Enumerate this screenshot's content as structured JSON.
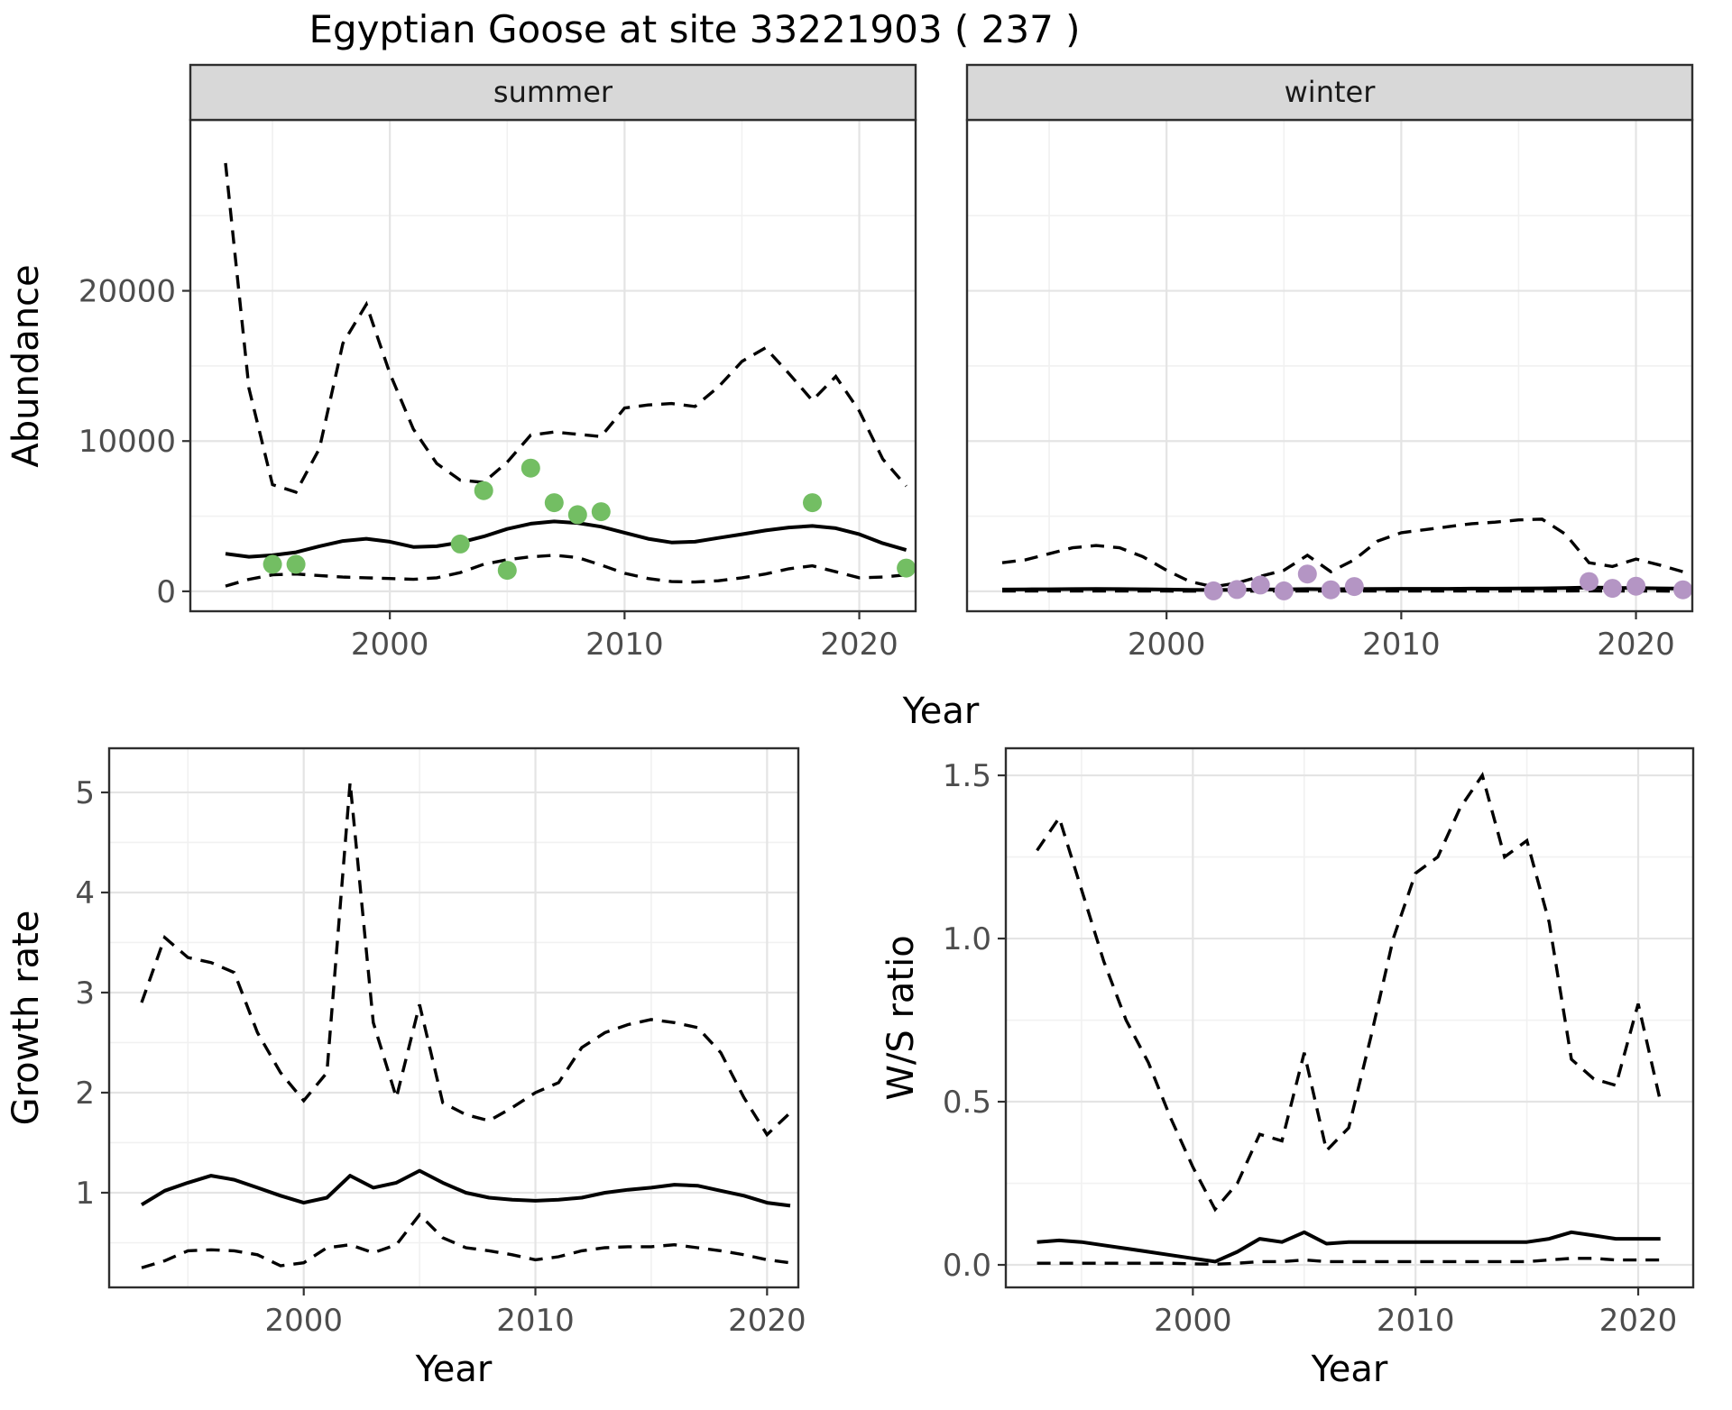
{
  "title": "Egyptian Goose at site 33221903 ( 237 )",
  "chart_data": {
    "type": "line",
    "title": "Egyptian Goose at site 33221903 ( 237 )",
    "facets": [
      "summer",
      "winter"
    ],
    "legend": "none",
    "grid": "on",
    "line_styles": {
      "mean": "solid",
      "confidence_interval": "dashed"
    },
    "colors": {
      "summer_points": "#73BE63",
      "winter_points": "#B495C4",
      "lines": "#000000",
      "strip_background": "#d8d8d8",
      "panel_border": "#2e2e2e",
      "grid_major": "#e4e4e4",
      "grid_minor": "#f1f1f1"
    },
    "panels": {
      "abundance_summer": {
        "strip": "summer",
        "xlabel": "Year",
        "ylabel": "Abundance",
        "xlim": [
          1991.5,
          2022.4
        ],
        "ylim": [
          -1326,
          31374
        ],
        "xticks": {
          "values": [
            2000,
            2010,
            2020
          ],
          "labels": [
            "2000",
            "2010",
            "2020"
          ]
        },
        "yticks": {
          "values": [
            0,
            10000,
            20000
          ],
          "labels": [
            "0",
            "10000",
            "20000"
          ]
        },
        "xminor": [
          1995,
          2005,
          2015
        ],
        "yminor": [
          5000,
          15000,
          25000
        ],
        "years": [
          1993,
          1994,
          1995,
          1996,
          1997,
          1998,
          1999,
          2000,
          2001,
          2002,
          2003,
          2004,
          2005,
          2006,
          2007,
          2008,
          2009,
          2010,
          2011,
          2012,
          2013,
          2014,
          2015,
          2016,
          2017,
          2018,
          2019,
          2020,
          2021,
          2022
        ],
        "ci_upper": [
          28500,
          13500,
          7100,
          6600,
          9500,
          16500,
          19100,
          14500,
          10800,
          8500,
          7400,
          7250,
          8600,
          10400,
          10600,
          10450,
          10300,
          12200,
          12400,
          12500,
          12300,
          13600,
          15300,
          16200,
          14500,
          12700,
          14300,
          12000,
          8800,
          7000
        ],
        "mean": [
          2500,
          2300,
          2400,
          2600,
          3000,
          3350,
          3500,
          3300,
          2950,
          3000,
          3250,
          3650,
          4150,
          4500,
          4650,
          4550,
          4300,
          3900,
          3500,
          3250,
          3300,
          3550,
          3800,
          4050,
          4250,
          4350,
          4200,
          3800,
          3200,
          2750
        ],
        "ci_lower": [
          350,
          800,
          1100,
          1150,
          1050,
          950,
          900,
          850,
          800,
          900,
          1250,
          1800,
          2100,
          2300,
          2400,
          2250,
          1750,
          1200,
          850,
          650,
          620,
          700,
          900,
          1150,
          1500,
          1700,
          1300,
          900,
          950,
          1100
        ],
        "points": {
          "color": "#73BE63",
          "years": [
            1995,
            1996,
            2003,
            2004,
            2005,
            2006,
            2007,
            2008,
            2009,
            2018,
            2022
          ],
          "values": [
            1800,
            1800,
            3150,
            6700,
            1400,
            8200,
            5900,
            5100,
            5300,
            5900,
            1550
          ]
        }
      },
      "abundance_winter": {
        "strip": "winter",
        "xlabel": "Year",
        "ylabel": "Abundance",
        "xlim": [
          1991.5,
          2022.4
        ],
        "ylim": [
          -1326,
          31374
        ],
        "xticks": {
          "values": [
            2000,
            2010,
            2020
          ],
          "labels": [
            "2000",
            "2010",
            "2020"
          ]
        },
        "yticks": {
          "values": [
            0,
            10000,
            20000
          ],
          "labels": [
            "0",
            "10000",
            "20000"
          ]
        },
        "xminor": [
          1995,
          2005,
          2015
        ],
        "yminor": [
          5000,
          15000,
          25000
        ],
        "years": [
          1993,
          1994,
          1995,
          1996,
          1997,
          1998,
          1999,
          2000,
          2001,
          2002,
          2003,
          2004,
          2005,
          2006,
          2007,
          2008,
          2009,
          2010,
          2011,
          2012,
          2013,
          2014,
          2015,
          2016,
          2017,
          2018,
          2019,
          2020,
          2021,
          2022
        ],
        "ci_upper": [
          1900,
          2100,
          2500,
          2900,
          3050,
          2900,
          2300,
          1400,
          650,
          300,
          550,
          1000,
          1400,
          2400,
          1300,
          2100,
          3350,
          3900,
          4100,
          4300,
          4500,
          4600,
          4750,
          4800,
          3800,
          1900,
          1650,
          2150,
          1750,
          1300
        ],
        "mean": [
          120,
          130,
          140,
          150,
          160,
          150,
          140,
          120,
          100,
          90,
          100,
          120,
          130,
          150,
          140,
          150,
          160,
          170,
          170,
          170,
          180,
          180,
          190,
          200,
          220,
          260,
          230,
          220,
          200,
          180
        ],
        "ci_lower": [
          20,
          20,
          20,
          20,
          20,
          20,
          20,
          15,
          10,
          5,
          10,
          15,
          15,
          20,
          15,
          20,
          20,
          20,
          20,
          20,
          20,
          20,
          20,
          20,
          20,
          30,
          20,
          20,
          15,
          10
        ],
        "points": {
          "color": "#B495C4",
          "years": [
            2002,
            2003,
            2004,
            2005,
            2006,
            2007,
            2008,
            2018,
            2019,
            2020,
            2022
          ],
          "values": [
            30,
            120,
            420,
            30,
            1150,
            100,
            320,
            650,
            200,
            340,
            100
          ]
        }
      },
      "growth_rate": {
        "strip": "",
        "xlabel": "Year",
        "ylabel": "Growth rate",
        "xlim": [
          1991.6,
          2021.35
        ],
        "ylim": [
          0.054,
          5.441
        ],
        "xticks": {
          "values": [
            2000,
            2010,
            2020
          ],
          "labels": [
            "2000",
            "2010",
            "2020"
          ]
        },
        "yticks": {
          "values": [
            1,
            2,
            3,
            4,
            5
          ],
          "labels": [
            "1",
            "2",
            "3",
            "4",
            "5"
          ]
        },
        "xminor": [
          1995,
          2005,
          2015
        ],
        "yminor": [
          0.5,
          1.5,
          2.5,
          3.5,
          4.5
        ],
        "years": [
          1993,
          1994,
          1995,
          1996,
          1997,
          1998,
          1999,
          2000,
          2001,
          2002,
          2003,
          2004,
          2005,
          2006,
          2007,
          2008,
          2009,
          2010,
          2011,
          2012,
          2013,
          2014,
          2015,
          2016,
          2017,
          2018,
          2019,
          2020,
          2021
        ],
        "ci_upper": [
          2.9,
          3.55,
          3.35,
          3.3,
          3.2,
          2.6,
          2.2,
          1.92,
          2.2,
          5.1,
          2.7,
          1.95,
          2.88,
          1.9,
          1.78,
          1.72,
          1.85,
          2.0,
          2.1,
          2.45,
          2.6,
          2.68,
          2.73,
          2.7,
          2.65,
          2.4,
          1.95,
          1.58,
          1.8
        ],
        "mean": [
          0.88,
          1.02,
          1.1,
          1.17,
          1.13,
          1.05,
          0.97,
          0.9,
          0.95,
          1.17,
          1.05,
          1.1,
          1.22,
          1.1,
          1.0,
          0.95,
          0.93,
          0.92,
          0.93,
          0.95,
          1.0,
          1.03,
          1.05,
          1.08,
          1.07,
          1.02,
          0.97,
          0.9,
          0.87
        ],
        "ci_lower": [
          0.25,
          0.32,
          0.42,
          0.43,
          0.42,
          0.38,
          0.27,
          0.3,
          0.45,
          0.48,
          0.4,
          0.48,
          0.78,
          0.55,
          0.45,
          0.42,
          0.38,
          0.33,
          0.36,
          0.42,
          0.45,
          0.46,
          0.46,
          0.48,
          0.45,
          0.42,
          0.38,
          0.33,
          0.3
        ],
        "points": {
          "color": "#000000",
          "years": [],
          "values": []
        }
      },
      "ws_ratio": {
        "strip": "",
        "xlabel": "Year",
        "ylabel": "W/S ratio",
        "xlim": [
          1991.6,
          2022.47
        ],
        "ylim": [
          -0.069,
          1.583
        ],
        "xticks": {
          "values": [
            2000,
            2010,
            2020
          ],
          "labels": [
            "2000",
            "2010",
            "2020"
          ]
        },
        "yticks": {
          "values": [
            0,
            0.5,
            1,
            1.5
          ],
          "labels": [
            "0.0",
            "0.5",
            "1.0",
            "1.5"
          ]
        },
        "xminor": [
          1995,
          2005,
          2015
        ],
        "yminor": [
          0.25,
          0.75,
          1.25
        ],
        "years": [
          1993,
          1994,
          1995,
          1996,
          1997,
          1998,
          1999,
          2000,
          2001,
          2002,
          2003,
          2004,
          2005,
          2006,
          2007,
          2008,
          2009,
          2010,
          2011,
          2012,
          2013,
          2014,
          2015,
          2016,
          2017,
          2018,
          2019,
          2020,
          2021
        ],
        "ci_upper": [
          1.27,
          1.37,
          1.15,
          0.93,
          0.75,
          0.62,
          0.45,
          0.3,
          0.17,
          0.25,
          0.4,
          0.38,
          0.65,
          0.35,
          0.42,
          0.7,
          1.0,
          1.2,
          1.25,
          1.4,
          1.5,
          1.25,
          1.3,
          1.05,
          0.63,
          0.57,
          0.55,
          0.8,
          0.5
        ],
        "mean": [
          0.07,
          0.075,
          0.07,
          0.06,
          0.05,
          0.04,
          0.03,
          0.02,
          0.01,
          0.04,
          0.08,
          0.07,
          0.1,
          0.065,
          0.07,
          0.07,
          0.07,
          0.07,
          0.07,
          0.07,
          0.07,
          0.07,
          0.07,
          0.08,
          0.1,
          0.09,
          0.08,
          0.08,
          0.08
        ],
        "ci_lower": [
          0.005,
          0.005,
          0.005,
          0.005,
          0.005,
          0.005,
          0.005,
          0.003,
          0.002,
          0.005,
          0.01,
          0.01,
          0.015,
          0.01,
          0.01,
          0.01,
          0.01,
          0.01,
          0.01,
          0.01,
          0.01,
          0.01,
          0.01,
          0.015,
          0.02,
          0.02,
          0.015,
          0.015,
          0.015
        ],
        "points": {
          "color": "#000000",
          "years": [],
          "values": []
        }
      }
    }
  }
}
